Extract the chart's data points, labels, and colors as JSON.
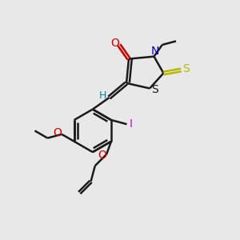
{
  "bg_color": "#e8e8e8",
  "line_color": "#1a1a1a",
  "bond_width": 1.8,
  "colors": {
    "O": "#cc0000",
    "N": "#0000cc",
    "S_yellow": "#b8b800",
    "S_black": "#1a1a1a",
    "I": "#cc00cc",
    "H": "#008888",
    "OC": "#cc0000"
  }
}
